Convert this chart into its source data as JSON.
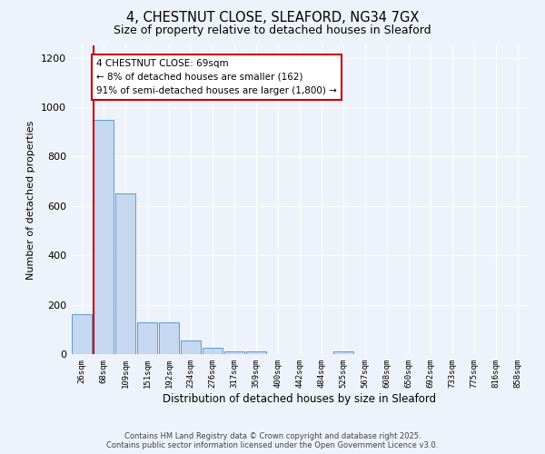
{
  "title_line1": "4, CHESTNUT CLOSE, SLEAFORD, NG34 7GX",
  "title_line2": "Size of property relative to detached houses in Sleaford",
  "xlabel": "Distribution of detached houses by size in Sleaford",
  "ylabel": "Number of detached properties",
  "categories": [
    "26sqm",
    "68sqm",
    "109sqm",
    "151sqm",
    "192sqm",
    "234sqm",
    "276sqm",
    "317sqm",
    "359sqm",
    "400sqm",
    "442sqm",
    "484sqm",
    "525sqm",
    "567sqm",
    "608sqm",
    "650sqm",
    "692sqm",
    "733sqm",
    "775sqm",
    "816sqm",
    "858sqm"
  ],
  "values": [
    162,
    950,
    650,
    130,
    130,
    55,
    25,
    12,
    10,
    0,
    0,
    0,
    10,
    0,
    0,
    0,
    0,
    0,
    0,
    0,
    0
  ],
  "ylim": [
    0,
    1250
  ],
  "yticks": [
    0,
    200,
    400,
    600,
    800,
    1000,
    1200
  ],
  "bar_color": "#c5d8f0",
  "bar_edge_color": "#5b9bd5",
  "property_line_color": "#cc0000",
  "annotation_text": "4 CHESTNUT CLOSE: 69sqm\n← 8% of detached houses are smaller (162)\n91% of semi-detached houses are larger (1,800) →",
  "annotation_box_color": "#ffffff",
  "annotation_box_edge": "#cc0000",
  "background_color": "#eef2fa",
  "footer_line1": "Contains HM Land Registry data © Crown copyright and database right 2025.",
  "footer_line2": "Contains public sector information licensed under the Open Government Licence v3.0."
}
